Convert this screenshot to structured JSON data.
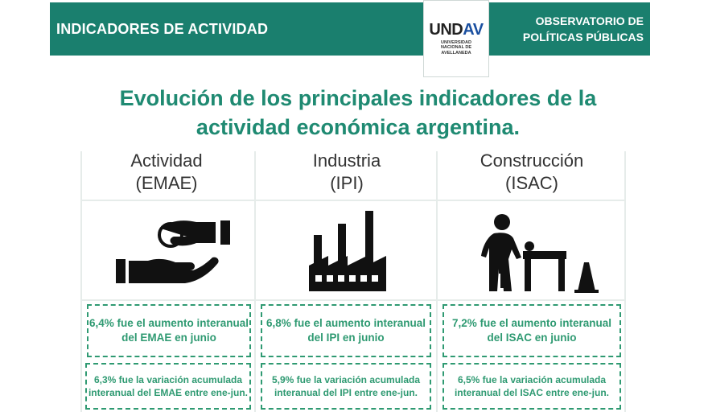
{
  "header": {
    "left_title": "INDICADORES DE ACTIVIDAD",
    "right_line1": "OBSERVATORIO DE",
    "right_line2": "POLÍTICAS PÚBLICAS"
  },
  "logo": {
    "main_und": "UND",
    "main_av": "AV",
    "sub": "UNIVERSIDAD NACIONAL DE AVELLANEDA"
  },
  "title": {
    "line1": "Evolución de los principales indicadores de la",
    "line2": "actividad económica argentina."
  },
  "columns": [
    {
      "name": "Actividad",
      "code": "(EMAE)",
      "icon": "handshake-money-icon",
      "box1": "6,4% fue el aumento interanual del EMAE en junio",
      "box2": "6,3% fue la variación acumulada interanual del EMAE entre ene-jun."
    },
    {
      "name": "Industria",
      "code": "(IPI)",
      "icon": "factory-icon",
      "box1": "6,8% fue el aumento interanual del IPI en junio",
      "box2": "5,9% fue la variación acumulada interanual del IPI entre ene-jun."
    },
    {
      "name": "Construcción",
      "code": "(ISAC)",
      "icon": "construction-worker-icon",
      "box1": "7,2% fue el aumento interanual del ISAC en junio",
      "box2": "6,5% fue la variación acumulada interanual del ISAC entre ene-jun."
    }
  ],
  "colors": {
    "header_bg": "#1a7f6e",
    "title_text": "#1f8a72",
    "box_text": "#2f9a72"
  }
}
